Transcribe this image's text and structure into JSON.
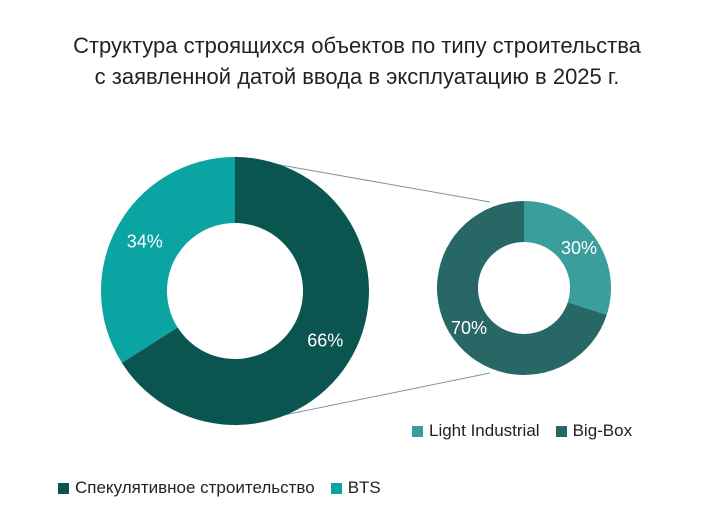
{
  "title": {
    "line1": "Структура строящихся объектов по типу строительства",
    "line2": "с заявленной датой ввода в эксплуатацию в 2025 г."
  },
  "colors": {
    "spec": "#0a5550",
    "bts": "#0aa4a3",
    "light_industrial": "#3a9e9c",
    "big_box": "#276867",
    "connector": "#7a9a98",
    "label_text": "#ffffff"
  },
  "chart_data": [
    {
      "type": "pie",
      "variant": "donut",
      "categories": [
        "Спекулятивное строительство",
        "BTS"
      ],
      "values": [
        66,
        34
      ],
      "labels": [
        "66%",
        "34%"
      ],
      "legend": "bottom-left"
    },
    {
      "type": "pie",
      "variant": "donut",
      "categories": [
        "Light Industrial",
        "Big-Box"
      ],
      "values": [
        30,
        70
      ],
      "labels": [
        "30%",
        "70%"
      ],
      "legend": "bottom-right"
    }
  ]
}
